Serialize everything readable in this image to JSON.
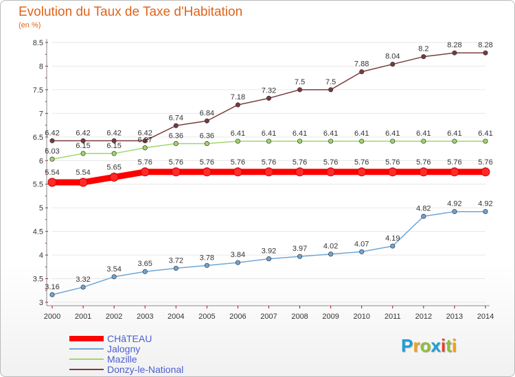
{
  "title": "Evolution du Taux de Taxe d'Habitation",
  "subtitle": "(en %)",
  "logo": {
    "text": "Proxiti",
    "colors": [
      "#1e9fd6",
      "#f0a21c",
      "#8dbf3a",
      "#1e9fd6",
      "#e4412c",
      "#8dbf3a",
      "#f0a21c"
    ]
  },
  "colors": {
    "title": "#e0631a",
    "axis": "#666666",
    "grid": "#e6e6e6",
    "legend_text": "#4a5fd0"
  },
  "chart_data": {
    "type": "line",
    "title": "Evolution du Taux de Taxe d'Habitation",
    "ylabel": "(en %)",
    "x": [
      "2000",
      "2001",
      "2002",
      "2003",
      "2004",
      "2005",
      "2006",
      "2007",
      "2008",
      "2009",
      "2010",
      "2011",
      "2012",
      "2013",
      "2014"
    ],
    "ylim": [
      3,
      8.5
    ],
    "yticks": [
      "3",
      "3.5",
      "4",
      "4.5",
      "5",
      "5.5",
      "6",
      "6.5",
      "7",
      "7.5",
      "8",
      "8.5"
    ],
    "grid": true,
    "legend_position": "bottom-left",
    "series": [
      {
        "name": "CHâTEAU",
        "color": "#ff0000",
        "thick": true,
        "values": [
          5.54,
          5.54,
          5.65,
          5.76,
          5.76,
          5.76,
          5.76,
          5.76,
          5.76,
          5.76,
          5.76,
          5.76,
          5.76,
          5.76,
          5.76
        ],
        "labels": [
          "5.54",
          "5.54",
          "5.65",
          "5.76",
          "5.76",
          "5.76",
          "5.76",
          "5.76",
          "5.76",
          "5.76",
          "5.76",
          "5.76",
          "5.76",
          "5.76",
          "5.76"
        ]
      },
      {
        "name": "Jalogny",
        "color": "#6fa5d6",
        "thick": false,
        "values": [
          3.16,
          3.32,
          3.54,
          3.65,
          3.72,
          3.78,
          3.84,
          3.92,
          3.97,
          4.02,
          4.07,
          4.19,
          4.82,
          4.92,
          4.92
        ],
        "labels": [
          "3.16",
          "3.32",
          "3.54",
          "3.65",
          "3.72",
          "3.78",
          "3.84",
          "3.92",
          "3.97",
          "4.02",
          "4.07",
          "4.19",
          "4.82",
          "4.92",
          "4.92"
        ]
      },
      {
        "name": "Mazille",
        "color": "#9fd66a",
        "thick": false,
        "values": [
          6.03,
          6.15,
          6.15,
          6.27,
          6.36,
          6.36,
          6.41,
          6.41,
          6.41,
          6.41,
          6.41,
          6.41,
          6.41,
          6.41,
          6.41
        ],
        "labels": [
          "6.03",
          "6.15",
          "6.15",
          "6.27",
          "6.36",
          "6.36",
          "6.41",
          "6.41",
          "6.41",
          "6.41",
          "6.41",
          "6.41",
          "6.41",
          "6.41",
          "6.41"
        ]
      },
      {
        "name": "Donzy-le-National",
        "color": "#7a3a3a",
        "thick": false,
        "values": [
          6.42,
          6.42,
          6.42,
          6.42,
          6.74,
          6.84,
          7.18,
          7.32,
          7.5,
          7.5,
          7.88,
          8.04,
          8.2,
          8.28,
          8.28
        ],
        "labels": [
          "6.42",
          "6.42",
          "6.42",
          "6.42",
          "6.74",
          "6.84",
          "7.18",
          "7.32",
          "7.5",
          "7.5",
          "7.88",
          "8.04",
          "8.2",
          "8.28",
          "8.28"
        ]
      }
    ]
  }
}
